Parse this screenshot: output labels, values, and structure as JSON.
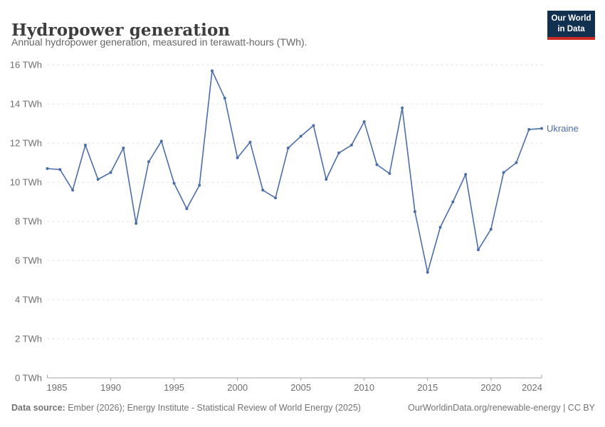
{
  "header": {
    "title": "Hydropower generation",
    "subtitle": "Annual hydropower generation, measured in terawatt-hours (TWh).",
    "logo": {
      "line1": "Our World",
      "line2": "in Data",
      "bg_color": "#12304f",
      "accent_color": "#cd2a24"
    }
  },
  "chart_data": {
    "type": "line",
    "title": "Hydropower generation",
    "subtitle": "Annual hydropower generation, measured in terawatt-hours (TWh).",
    "xlabel": "",
    "ylabel": "TWh",
    "xlim": [
      1985,
      2024
    ],
    "ylim": [
      0,
      16
    ],
    "grid": "horizontal-dashed",
    "legend_position": "end-of-line-label",
    "x_tick_labels": [
      "1985",
      "1990",
      "1995",
      "2000",
      "2005",
      "2010",
      "2015",
      "2020",
      "2024"
    ],
    "x_tick_years": [
      1985,
      1990,
      1995,
      2000,
      2005,
      2010,
      2015,
      2020,
      2024
    ],
    "y_ticks": [
      0,
      2,
      4,
      6,
      8,
      10,
      12,
      14,
      16
    ],
    "y_tick_labels": [
      "0 TWh",
      "2 TWh",
      "4 TWh",
      "6 TWh",
      "8 TWh",
      "10 TWh",
      "12 TWh",
      "14 TWh",
      "16 TWh"
    ],
    "series": [
      {
        "name": "Ukraine",
        "color": "#4c6ea8",
        "x": [
          1985,
          1986,
          1987,
          1988,
          1989,
          1990,
          1991,
          1992,
          1993,
          1994,
          1995,
          1996,
          1997,
          1998,
          1999,
          2000,
          2001,
          2002,
          2003,
          2004,
          2005,
          2006,
          2007,
          2008,
          2009,
          2010,
          2011,
          2012,
          2013,
          2014,
          2015,
          2016,
          2017,
          2018,
          2019,
          2020,
          2021,
          2022,
          2023,
          2024
        ],
        "values": [
          10.7,
          10.65,
          9.6,
          11.9,
          10.15,
          10.5,
          11.75,
          7.9,
          11.05,
          12.1,
          9.95,
          8.65,
          9.85,
          15.7,
          14.3,
          11.25,
          12.05,
          9.6,
          9.2,
          11.75,
          12.35,
          12.9,
          10.15,
          11.5,
          11.9,
          13.1,
          10.9,
          10.45,
          13.8,
          8.5,
          5.4,
          7.7,
          9.0,
          10.4,
          6.55,
          7.6,
          10.5,
          11.0,
          12.7,
          12.75
        ]
      }
    ]
  },
  "footer": {
    "source_label": "Data source:",
    "source_text": " Ember (2026); Energy Institute - Statistical Review of World Energy (2025)",
    "link_text": "OurWorldinData.org/renewable-energy | CC BY"
  }
}
